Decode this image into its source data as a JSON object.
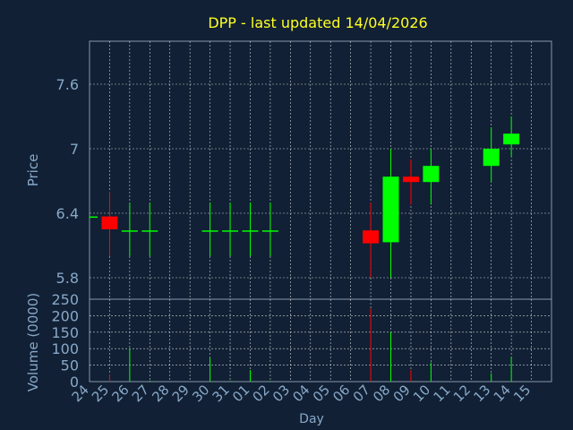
{
  "title": "DPP - last updated 14/04/2026",
  "colors": {
    "background": "#112034",
    "axis_text": "#88a8c8",
    "title": "#ffff22",
    "up": "#00ff00",
    "down": "#ff0000",
    "grid": "#ffffff",
    "frame": "#8899aa"
  },
  "chart_data": [
    {
      "type": "candlestick",
      "ylabel": "Price",
      "ylim": [
        5.6,
        8.0
      ],
      "yticks": [
        5.8,
        6.4,
        7.0,
        7.6
      ],
      "ytick_labels": [
        "5.8",
        "6.4",
        "7",
        "7.6"
      ],
      "grid": true,
      "candles": [
        {
          "day": "24",
          "open": 6.36,
          "high": 6.37,
          "low": 6.35,
          "close": 6.37
        },
        {
          "day": "25",
          "open": 6.37,
          "high": 6.6,
          "low": 6.0,
          "close": 6.25
        },
        {
          "day": "26",
          "open": 6.24,
          "high": 6.5,
          "low": 6.0,
          "close": 6.24
        },
        {
          "day": "27",
          "open": 6.24,
          "high": 6.5,
          "low": 6.0,
          "close": 6.24
        },
        {
          "day": "30",
          "open": 6.24,
          "high": 6.5,
          "low": 6.0,
          "close": 6.24
        },
        {
          "day": "31",
          "open": 6.24,
          "high": 6.5,
          "low": 6.0,
          "close": 6.24
        },
        {
          "day": "01",
          "open": 6.24,
          "high": 6.5,
          "low": 6.0,
          "close": 6.24
        },
        {
          "day": "02",
          "open": 6.24,
          "high": 6.5,
          "low": 6.0,
          "close": 6.24
        },
        {
          "day": "07",
          "open": 6.24,
          "high": 6.5,
          "low": 5.8,
          "close": 6.12
        },
        {
          "day": "08",
          "open": 6.13,
          "high": 7.0,
          "low": 5.8,
          "close": 6.74
        },
        {
          "day": "09",
          "open": 6.74,
          "high": 6.9,
          "low": 6.48,
          "close": 6.69
        },
        {
          "day": "10",
          "open": 6.69,
          "high": 7.0,
          "low": 6.48,
          "close": 6.84
        },
        {
          "day": "13",
          "open": 6.84,
          "high": 7.2,
          "low": 6.69,
          "close": 7.0
        },
        {
          "day": "14",
          "open": 7.04,
          "high": 7.3,
          "low": 6.93,
          "close": 7.14
        }
      ]
    },
    {
      "type": "bar",
      "ylabel": "Volume (0000)",
      "xlabel": "Day",
      "ylim": [
        0,
        250
      ],
      "yticks": [
        0,
        50,
        100,
        150,
        200,
        250
      ],
      "ytick_labels": [
        "0",
        "50",
        "100",
        "150",
        "200",
        "250"
      ],
      "categories": [
        "24",
        "25",
        "26",
        "27",
        "28",
        "29",
        "30",
        "31",
        "01",
        "02",
        "03",
        "04",
        "05",
        "06",
        "07",
        "08",
        "09",
        "10",
        "11",
        "12",
        "13",
        "14",
        "15"
      ],
      "series": [
        {
          "values": [
            {
              "day": "24",
              "volume": 1,
              "direction": "up"
            },
            {
              "day": "25",
              "volume": 22,
              "direction": "down"
            },
            {
              "day": "26",
              "volume": 100,
              "direction": "up"
            },
            {
              "day": "27",
              "volume": 3,
              "direction": "up"
            },
            {
              "day": "30",
              "volume": 72,
              "direction": "up"
            },
            {
              "day": "31",
              "volume": 2,
              "direction": "up"
            },
            {
              "day": "01",
              "volume": 35,
              "direction": "up"
            },
            {
              "day": "02",
              "volume": 2,
              "direction": "up"
            },
            {
              "day": "07",
              "volume": 222,
              "direction": "down"
            },
            {
              "day": "08",
              "volume": 150,
              "direction": "up"
            },
            {
              "day": "09",
              "volume": 35,
              "direction": "down"
            },
            {
              "day": "10",
              "volume": 58,
              "direction": "up"
            },
            {
              "day": "13",
              "volume": 25,
              "direction": "up"
            },
            {
              "day": "14",
              "volume": 75,
              "direction": "up"
            }
          ]
        }
      ]
    }
  ]
}
